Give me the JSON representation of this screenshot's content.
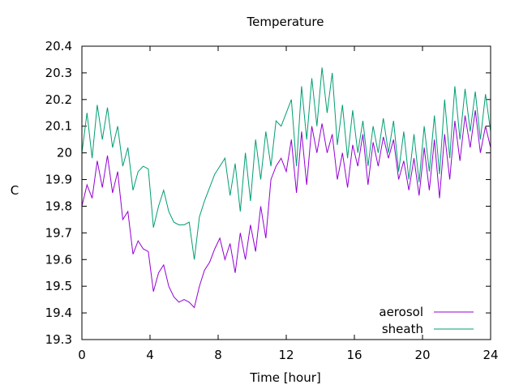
{
  "chart_data": {
    "type": "line",
    "title": "Temperature",
    "xlabel": "Time [hour]",
    "ylabel": "C",
    "xlim": [
      0,
      24
    ],
    "ylim": [
      19.3,
      20.4
    ],
    "xticks": [
      0,
      4,
      8,
      12,
      16,
      20,
      24
    ],
    "yticks": [
      19.3,
      19.4,
      19.5,
      19.6,
      19.7,
      19.8,
      19.9,
      20,
      20.1,
      20.2,
      20.3,
      20.4
    ],
    "xtick_labels": [
      "0",
      "4",
      "8",
      "12",
      "16",
      "20",
      "24"
    ],
    "ytick_labels": [
      "19.3",
      "19.4",
      "19.5",
      "19.6",
      "19.7",
      "19.8",
      "19.9",
      "20",
      "20.1",
      "20.2",
      "20.3",
      "20.4"
    ],
    "grid": false,
    "legend_position": "bottom-right",
    "series": [
      {
        "name": "aerosol",
        "color": "#9400d3",
        "x": [
          0,
          0.3,
          0.6,
          0.9,
          1.2,
          1.5,
          1.8,
          2.1,
          2.4,
          2.7,
          3.0,
          3.3,
          3.6,
          3.9,
          4.2,
          4.5,
          4.8,
          5.1,
          5.4,
          5.7,
          6.0,
          6.3,
          6.6,
          6.9,
          7.2,
          7.5,
          7.8,
          8.1,
          8.4,
          8.7,
          9.0,
          9.3,
          9.6,
          9.9,
          10.2,
          10.5,
          10.8,
          11.1,
          11.4,
          11.7,
          12.0,
          12.3,
          12.6,
          12.9,
          13.2,
          13.5,
          13.8,
          14.1,
          14.4,
          14.7,
          15.0,
          15.3,
          15.6,
          15.9,
          16.2,
          16.5,
          16.8,
          17.1,
          17.4,
          17.7,
          18.0,
          18.3,
          18.6,
          18.9,
          19.2,
          19.5,
          19.8,
          20.1,
          20.4,
          20.7,
          21.0,
          21.3,
          21.6,
          21.9,
          22.2,
          22.5,
          22.8,
          23.1,
          23.4,
          23.7,
          24.0
        ],
        "values": [
          19.8,
          19.88,
          19.83,
          19.97,
          19.87,
          19.99,
          19.85,
          19.93,
          19.75,
          19.78,
          19.62,
          19.67,
          19.64,
          19.63,
          19.48,
          19.55,
          19.58,
          19.5,
          19.46,
          19.44,
          19.45,
          19.44,
          19.42,
          19.5,
          19.56,
          19.59,
          19.64,
          19.68,
          19.6,
          19.66,
          19.55,
          19.7,
          19.6,
          19.73,
          19.63,
          19.8,
          19.68,
          19.9,
          19.95,
          19.98,
          19.93,
          20.05,
          19.85,
          20.08,
          19.88,
          20.1,
          20.0,
          20.11,
          20.0,
          20.07,
          19.9,
          20.0,
          19.87,
          20.03,
          19.95,
          20.07,
          19.88,
          20.04,
          19.95,
          20.06,
          19.98,
          20.05,
          19.9,
          19.97,
          19.86,
          19.98,
          19.84,
          20.02,
          19.86,
          20.05,
          19.83,
          20.07,
          19.9,
          20.12,
          19.97,
          20.14,
          20.02,
          20.16,
          20.0,
          20.1,
          20.02
        ]
      },
      {
        "name": "sheath",
        "color": "#009e73",
        "x": [
          0,
          0.3,
          0.6,
          0.9,
          1.2,
          1.5,
          1.8,
          2.1,
          2.4,
          2.7,
          3.0,
          3.3,
          3.6,
          3.9,
          4.2,
          4.5,
          4.8,
          5.1,
          5.4,
          5.7,
          6.0,
          6.3,
          6.6,
          6.9,
          7.2,
          7.5,
          7.8,
          8.1,
          8.4,
          8.7,
          9.0,
          9.3,
          9.6,
          9.9,
          10.2,
          10.5,
          10.8,
          11.1,
          11.4,
          11.7,
          12.0,
          12.3,
          12.6,
          12.9,
          13.2,
          13.5,
          13.8,
          14.1,
          14.4,
          14.7,
          15.0,
          15.3,
          15.6,
          15.9,
          16.2,
          16.5,
          16.8,
          17.1,
          17.4,
          17.7,
          18.0,
          18.3,
          18.6,
          18.9,
          19.2,
          19.5,
          19.8,
          20.1,
          20.4,
          20.7,
          21.0,
          21.3,
          21.6,
          21.9,
          22.2,
          22.5,
          22.8,
          23.1,
          23.4,
          23.7,
          24.0
        ],
        "values": [
          20.0,
          20.15,
          19.98,
          20.18,
          20.05,
          20.17,
          20.02,
          20.1,
          19.95,
          20.02,
          19.86,
          19.93,
          19.95,
          19.94,
          19.72,
          19.8,
          19.86,
          19.78,
          19.74,
          19.73,
          19.73,
          19.74,
          19.6,
          19.76,
          19.82,
          19.87,
          19.92,
          19.95,
          19.98,
          19.84,
          19.96,
          19.78,
          20.0,
          19.82,
          20.05,
          19.9,
          20.08,
          19.95,
          20.12,
          20.1,
          20.15,
          20.2,
          19.95,
          20.25,
          20.05,
          20.28,
          20.1,
          20.32,
          20.15,
          20.3,
          20.03,
          20.18,
          19.98,
          20.16,
          20.0,
          20.12,
          19.95,
          20.1,
          20.0,
          20.13,
          20.0,
          20.12,
          19.93,
          20.08,
          19.9,
          20.07,
          19.89,
          20.1,
          19.93,
          20.14,
          19.92,
          20.2,
          19.98,
          20.25,
          20.05,
          20.24,
          20.08,
          20.23,
          20.05,
          20.22,
          20.08
        ]
      }
    ]
  }
}
